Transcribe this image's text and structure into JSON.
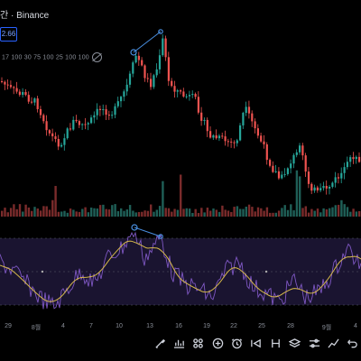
{
  "header": {
    "symbol_text": "간 · Binance",
    "price_badge": "2.66"
  },
  "indicators": {
    "params": "17 100 30 75 100 25 100 100"
  },
  "date_axis": {
    "labels": [
      "29",
      "8월",
      "4",
      "7",
      "10",
      "13",
      "16",
      "19",
      "22",
      "25",
      "28",
      "9월",
      "4"
    ]
  },
  "toolbar": {
    "icons": [
      "brush-icon",
      "chart-style-icon",
      "indicators-icon",
      "add-icon",
      "alert-icon",
      "replay-icon",
      "compare-icon",
      "layers-icon",
      "settings-sliders-icon",
      "draw-line-icon",
      "undo-icon"
    ]
  },
  "colors": {
    "up": "#26a69a",
    "down": "#ef5350",
    "rsi_line": "#7e57c2",
    "rsi_ma": "#d6b94a",
    "drawing": "#4a90e2",
    "rsi_band": "#1a1430"
  }
}
